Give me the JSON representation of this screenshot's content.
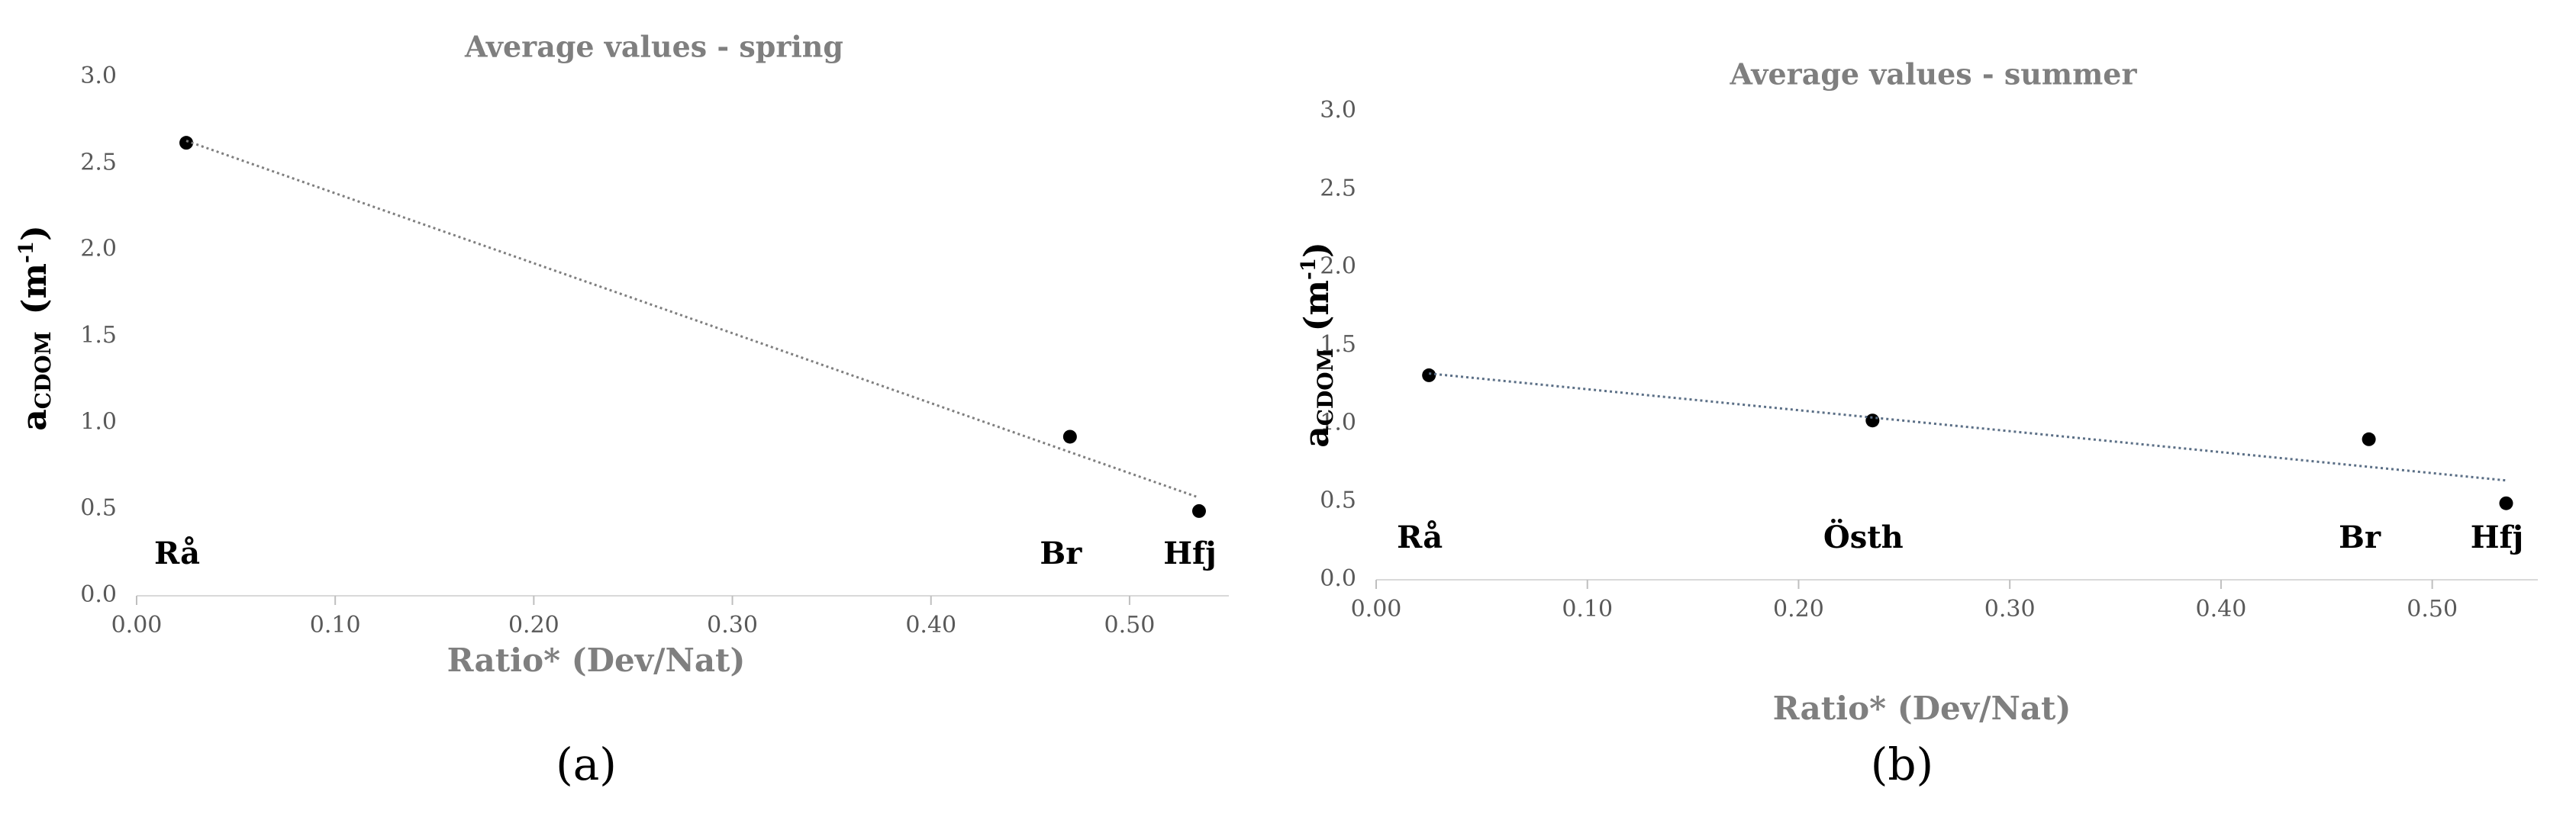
{
  "chart_data": [
    {
      "type": "scatter",
      "title": "Average values - spring",
      "x_label": "Ratio* (Dev/Nat)",
      "y_label": [
        "a",
        "CDOM",
        "(m",
        "-1",
        ")"
      ],
      "caption": "(a)",
      "labels": [
        "Rå",
        "Br",
        "Hfj"
      ],
      "x": [
        0.025,
        0.47,
        0.535
      ],
      "values": [
        2.62,
        0.92,
        0.49
      ],
      "color": "#000000",
      "trendline": true,
      "trend_color": "#7f7f7f",
      "xlim": [
        0,
        0.55
      ],
      "ylim": [
        0,
        3
      ],
      "xticks": [
        {
          "value": 0,
          "label": "0.00"
        },
        {
          "value": 0.1,
          "label": "0.10"
        },
        {
          "value": 0.2,
          "label": "0.20"
        },
        {
          "value": 0.3,
          "label": "0.30"
        },
        {
          "value": 0.4,
          "label": "0.40"
        },
        {
          "value": 0.5,
          "label": "0.50"
        }
      ],
      "yticks": [
        {
          "value": 0,
          "label": "0.0"
        },
        {
          "value": 0.5,
          "label": "0.5"
        },
        {
          "value": 1,
          "label": "1.0"
        },
        {
          "value": 1.5,
          "label": "1.5"
        },
        {
          "value": 2,
          "label": "2.0"
        },
        {
          "value": 2.5,
          "label": "2.5"
        },
        {
          "value": 3,
          "label": "3.0"
        }
      ]
    },
    {
      "type": "scatter",
      "title": "Average values - summer",
      "x_label": "Ratio* (Dev/Nat)",
      "y_label": [
        "a",
        "CDOM",
        "(m",
        "-1",
        ")"
      ],
      "caption": "(b)",
      "labels": [
        "Rå",
        "Östh",
        "Br",
        "Hfj"
      ],
      "x": [
        0.025,
        0.235,
        0.47,
        0.535
      ],
      "values": [
        1.31,
        1.02,
        0.9,
        0.49
      ],
      "color": "#000000",
      "trendline": true,
      "trend_color": "#5b6f86",
      "xlim": [
        0,
        0.55
      ],
      "ylim": [
        0,
        3
      ],
      "xticks": [
        {
          "value": 0,
          "label": "0.00"
        },
        {
          "value": 0.1,
          "label": "0.10"
        },
        {
          "value": 0.2,
          "label": "0.20"
        },
        {
          "value": 0.3,
          "label": "0.30"
        },
        {
          "value": 0.4,
          "label": "0.40"
        },
        {
          "value": 0.5,
          "label": "0.50"
        }
      ],
      "yticks": [
        {
          "value": 0,
          "label": "0.0"
        },
        {
          "value": 0.5,
          "label": "0.5"
        },
        {
          "value": 1,
          "label": "1.0"
        },
        {
          "value": 1.5,
          "label": "1.5"
        },
        {
          "value": 2,
          "label": "2.0"
        },
        {
          "value": 2.5,
          "label": "2.5"
        },
        {
          "value": 3,
          "label": "3.0"
        }
      ]
    }
  ]
}
